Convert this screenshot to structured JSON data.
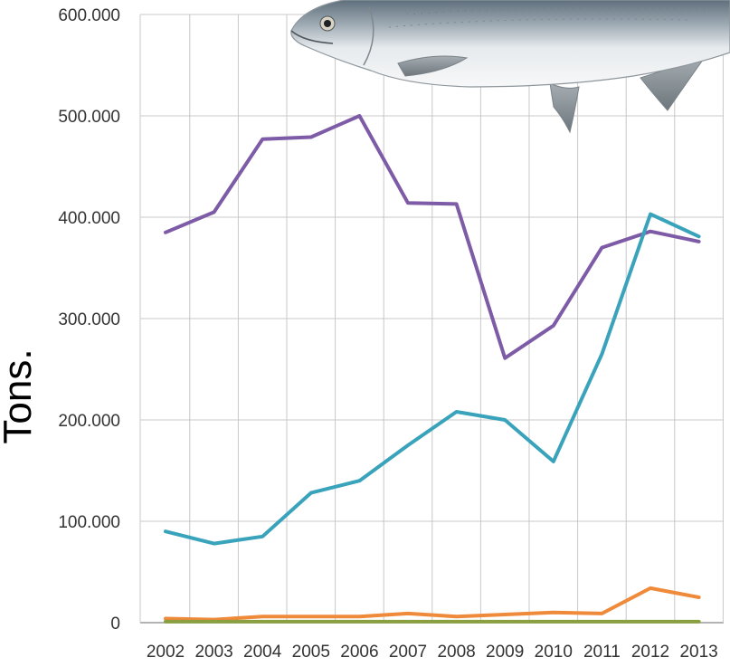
{
  "chart_data": {
    "type": "line",
    "title": "",
    "xlabel": "",
    "ylabel": "Tons.",
    "x": [
      "2002",
      "2003",
      "2004",
      "2005",
      "2006",
      "2007",
      "2008",
      "2009",
      "2010",
      "2011",
      "2012",
      "2013"
    ],
    "y_ticks": [
      "0",
      "100.000",
      "200.000",
      "300.000",
      "400.000",
      "500.000",
      "600.000"
    ],
    "y_tick_values": [
      0,
      100000,
      200000,
      300000,
      400000,
      500000,
      600000
    ],
    "ylim": [
      0,
      600000
    ],
    "grid": true,
    "legend": "none",
    "series": [
      {
        "color": "#7d5ba6",
        "values": [
          385000,
          405000,
          477000,
          479000,
          500000,
          414000,
          413000,
          261000,
          293000,
          370000,
          386000,
          376000
        ]
      },
      {
        "color": "#3aa3bc",
        "values": [
          90000,
          78000,
          85000,
          128000,
          140000,
          175000,
          208000,
          200000,
          159000,
          265000,
          403000,
          381000
        ]
      },
      {
        "color": "#ee8a3a",
        "values": [
          4000,
          3000,
          6000,
          6000,
          6000,
          9000,
          6000,
          8000,
          10000,
          9000,
          34000,
          25000
        ]
      },
      {
        "color": "#8aa040",
        "values": [
          1000,
          1000,
          1000,
          1000,
          1000,
          1000,
          1000,
          1000,
          1000,
          1000,
          1000,
          1000
        ]
      }
    ],
    "decoration": {
      "icon": "salmon-fish-illustration"
    }
  }
}
